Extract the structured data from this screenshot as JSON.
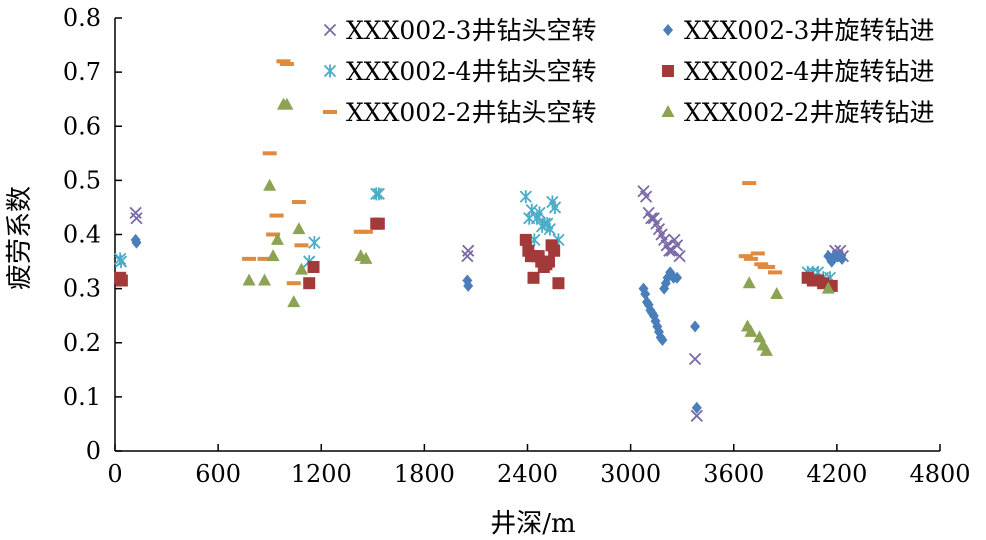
{
  "chart_data": {
    "type": "scatter",
    "xlabel": "井深/m",
    "ylabel": "疲劳系数",
    "xlim": [
      0,
      4800
    ],
    "ylim": [
      0,
      0.8
    ],
    "x_ticks": [
      0,
      600,
      1200,
      1800,
      2400,
      3000,
      3600,
      4200,
      4800
    ],
    "y_ticks": [
      0,
      0.1,
      0.2,
      0.3,
      0.4,
      0.5,
      0.6,
      0.7,
      0.8
    ],
    "x_tick_labels": [
      "0",
      "600",
      "1200",
      "1800",
      "2400",
      "3000",
      "3600",
      "4200",
      "4800"
    ],
    "y_tick_labels": [
      "0",
      "0.1",
      "0.2",
      "0.3",
      "0.4",
      "0.5",
      "0.6",
      "0.7",
      "0.8"
    ],
    "grid": false,
    "legend_position": "top-right",
    "series": [
      {
        "name": "XXX002-3井钻头空转",
        "marker": "x",
        "color": "#7b68a6",
        "points": [
          [
            120,
            0.44
          ],
          [
            125,
            0.43
          ],
          [
            2050,
            0.36
          ],
          [
            2055,
            0.37
          ],
          [
            3075,
            0.48
          ],
          [
            3090,
            0.47
          ],
          [
            3105,
            0.44
          ],
          [
            3120,
            0.43
          ],
          [
            3135,
            0.43
          ],
          [
            3150,
            0.42
          ],
          [
            3165,
            0.41
          ],
          [
            3180,
            0.4
          ],
          [
            3195,
            0.39
          ],
          [
            3210,
            0.38
          ],
          [
            3225,
            0.37
          ],
          [
            3240,
            0.37
          ],
          [
            3255,
            0.39
          ],
          [
            3270,
            0.38
          ],
          [
            3285,
            0.36
          ],
          [
            3375,
            0.17
          ],
          [
            3385,
            0.065
          ],
          [
            4175,
            0.36
          ],
          [
            4190,
            0.37
          ],
          [
            4205,
            0.36
          ],
          [
            4220,
            0.37
          ],
          [
            4235,
            0.36
          ]
        ]
      },
      {
        "name": "XXX002-3井旋转钻进",
        "marker": "diamond",
        "color": "#4a7ebb",
        "points": [
          [
            120,
            0.39
          ],
          [
            125,
            0.385
          ],
          [
            2050,
            0.315
          ],
          [
            2055,
            0.305
          ],
          [
            3075,
            0.3
          ],
          [
            3085,
            0.29
          ],
          [
            3095,
            0.275
          ],
          [
            3105,
            0.27
          ],
          [
            3115,
            0.26
          ],
          [
            3125,
            0.255
          ],
          [
            3135,
            0.25
          ],
          [
            3145,
            0.24
          ],
          [
            3155,
            0.23
          ],
          [
            3165,
            0.22
          ],
          [
            3175,
            0.21
          ],
          [
            3185,
            0.205
          ],
          [
            3195,
            0.3
          ],
          [
            3205,
            0.31
          ],
          [
            3215,
            0.32
          ],
          [
            3230,
            0.33
          ],
          [
            3250,
            0.32
          ],
          [
            3270,
            0.32
          ],
          [
            3375,
            0.23
          ],
          [
            3385,
            0.08
          ],
          [
            4150,
            0.36
          ],
          [
            4170,
            0.35
          ],
          [
            4190,
            0.36
          ],
          [
            4210,
            0.36
          ],
          [
            4230,
            0.355
          ]
        ]
      },
      {
        "name": "XXX002-4井钻头空转",
        "marker": "asterisk",
        "color": "#4aacc6",
        "points": [
          [
            30,
            0.355
          ],
          [
            35,
            0.35
          ],
          [
            1130,
            0.35
          ],
          [
            1160,
            0.385
          ],
          [
            1520,
            0.475
          ],
          [
            1535,
            0.475
          ],
          [
            2390,
            0.47
          ],
          [
            2410,
            0.43
          ],
          [
            2425,
            0.445
          ],
          [
            2440,
            0.39
          ],
          [
            2455,
            0.43
          ],
          [
            2470,
            0.44
          ],
          [
            2485,
            0.415
          ],
          [
            2500,
            0.42
          ],
          [
            2515,
            0.42
          ],
          [
            2530,
            0.41
          ],
          [
            2545,
            0.46
          ],
          [
            2560,
            0.45
          ],
          [
            2580,
            0.39
          ],
          [
            4030,
            0.33
          ],
          [
            4060,
            0.33
          ],
          [
            4090,
            0.33
          ],
          [
            4120,
            0.32
          ],
          [
            4160,
            0.32
          ]
        ]
      },
      {
        "name": "XXX002-4井旋转钻进",
        "marker": "square",
        "color": "#a33a3a",
        "points": [
          [
            30,
            0.32
          ],
          [
            40,
            0.315
          ],
          [
            1130,
            0.31
          ],
          [
            1155,
            0.34
          ],
          [
            1520,
            0.42
          ],
          [
            1535,
            0.42
          ],
          [
            2390,
            0.39
          ],
          [
            2405,
            0.37
          ],
          [
            2420,
            0.36
          ],
          [
            2435,
            0.32
          ],
          [
            2450,
            0.36
          ],
          [
            2465,
            0.36
          ],
          [
            2480,
            0.35
          ],
          [
            2495,
            0.34
          ],
          [
            2510,
            0.345
          ],
          [
            2525,
            0.35
          ],
          [
            2540,
            0.38
          ],
          [
            2555,
            0.37
          ],
          [
            2580,
            0.31
          ],
          [
            4030,
            0.32
          ],
          [
            4060,
            0.315
          ],
          [
            4090,
            0.315
          ],
          [
            4120,
            0.31
          ],
          [
            4170,
            0.305
          ]
        ]
      },
      {
        "name": "XXX002-2井钻头空转",
        "marker": "dash",
        "color": "#e08a3e",
        "points": [
          [
            780,
            0.355
          ],
          [
            870,
            0.355
          ],
          [
            900,
            0.55
          ],
          [
            920,
            0.4
          ],
          [
            940,
            0.435
          ],
          [
            980,
            0.72
          ],
          [
            1000,
            0.715
          ],
          [
            1040,
            0.31
          ],
          [
            1070,
            0.46
          ],
          [
            1085,
            0.38
          ],
          [
            1430,
            0.405
          ],
          [
            1460,
            0.405
          ],
          [
            3670,
            0.36
          ],
          [
            3690,
            0.495
          ],
          [
            3700,
            0.355
          ],
          [
            3740,
            0.365
          ],
          [
            3760,
            0.345
          ],
          [
            3780,
            0.34
          ],
          [
            3800,
            0.34
          ],
          [
            3840,
            0.33
          ]
        ]
      },
      {
        "name": "XXX002-2井旋转钻进",
        "marker": "triangle",
        "color": "#8ba352",
        "points": [
          [
            780,
            0.315
          ],
          [
            870,
            0.315
          ],
          [
            900,
            0.49
          ],
          [
            920,
            0.36
          ],
          [
            945,
            0.39
          ],
          [
            980,
            0.64
          ],
          [
            1000,
            0.64
          ],
          [
            1040,
            0.275
          ],
          [
            1070,
            0.41
          ],
          [
            1085,
            0.335
          ],
          [
            1430,
            0.36
          ],
          [
            1460,
            0.355
          ],
          [
            3680,
            0.23
          ],
          [
            3690,
            0.31
          ],
          [
            3700,
            0.22
          ],
          [
            3750,
            0.21
          ],
          [
            3770,
            0.195
          ],
          [
            3790,
            0.185
          ],
          [
            3850,
            0.29
          ],
          [
            4150,
            0.3
          ]
        ]
      }
    ]
  }
}
